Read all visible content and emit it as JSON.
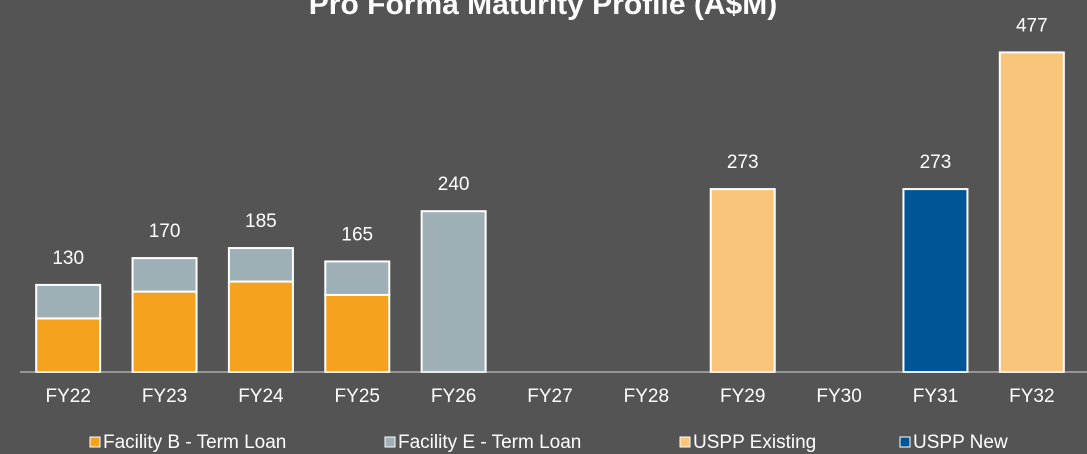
{
  "chart_data": {
    "type": "stacked_bar",
    "title": "Pro Forma Maturity Profile (A$M)",
    "categories": [
      "FY22",
      "FY23",
      "FY24",
      "FY25",
      "FY26",
      "FY27",
      "FY28",
      "FY29",
      "FY30",
      "FY31",
      "FY32"
    ],
    "series": [
      {
        "name": "Facility B - Term Loan",
        "color": "#f5a31f",
        "values": [
          80,
          120,
          135,
          115,
          null,
          null,
          null,
          null,
          null,
          null,
          null
        ]
      },
      {
        "name": "Facility E - Term Loan",
        "color": "#9eb0b5",
        "values": [
          50,
          50,
          50,
          50,
          240,
          null,
          null,
          null,
          null,
          null,
          null
        ]
      },
      {
        "name": "USPP Existing",
        "color": "#f9c57a",
        "values": [
          null,
          null,
          null,
          null,
          null,
          null,
          null,
          273,
          null,
          null,
          477
        ]
      },
      {
        "name": "USPP New",
        "color": "#005596",
        "values": [
          null,
          null,
          null,
          null,
          null,
          null,
          null,
          null,
          null,
          273,
          null
        ]
      }
    ],
    "totals": [
      130,
      170,
      185,
      165,
      240,
      null,
      null,
      273,
      null,
      273,
      477
    ],
    "ylim": [
      0,
      500
    ]
  }
}
